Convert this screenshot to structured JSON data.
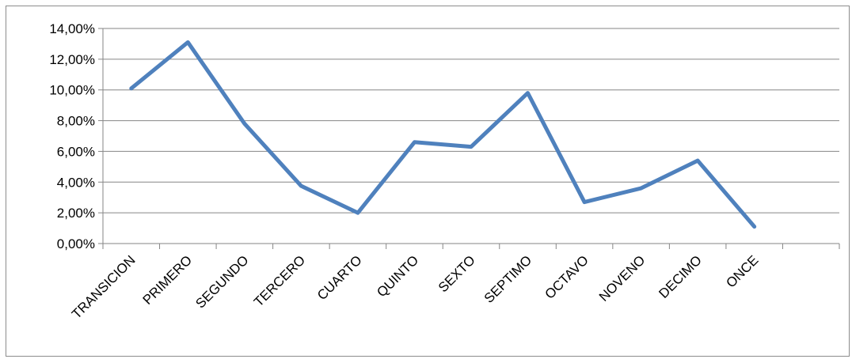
{
  "chart_data": {
    "type": "line",
    "title": "",
    "xlabel": "",
    "ylabel": "",
    "categories": [
      "TRANSICION",
      "PRIMERO",
      "SEGUNDO",
      "TERCERO",
      "CUARTO",
      "QUINTO",
      "SEXTO",
      "SEPTIMO",
      "OCTAVO",
      "NOVENO",
      "DECIMO",
      "ONCE"
    ],
    "series": [
      {
        "values": [
          10.1,
          13.1,
          7.8,
          3.75,
          2.0,
          6.6,
          6.3,
          9.8,
          2.7,
          3.6,
          5.4,
          1.1
        ],
        "color": "#4f81bd"
      }
    ],
    "ylim": [
      0,
      14
    ],
    "yticks": [
      "0,00%",
      "2,00%",
      "4,00%",
      "6,00%",
      "8,00%",
      "10,00%",
      "12,00%",
      "14,00%"
    ],
    "grid": true,
    "legend": "none",
    "colors": {
      "line": "#4f81bd",
      "grid": "#868686",
      "axis": "#868686"
    }
  }
}
